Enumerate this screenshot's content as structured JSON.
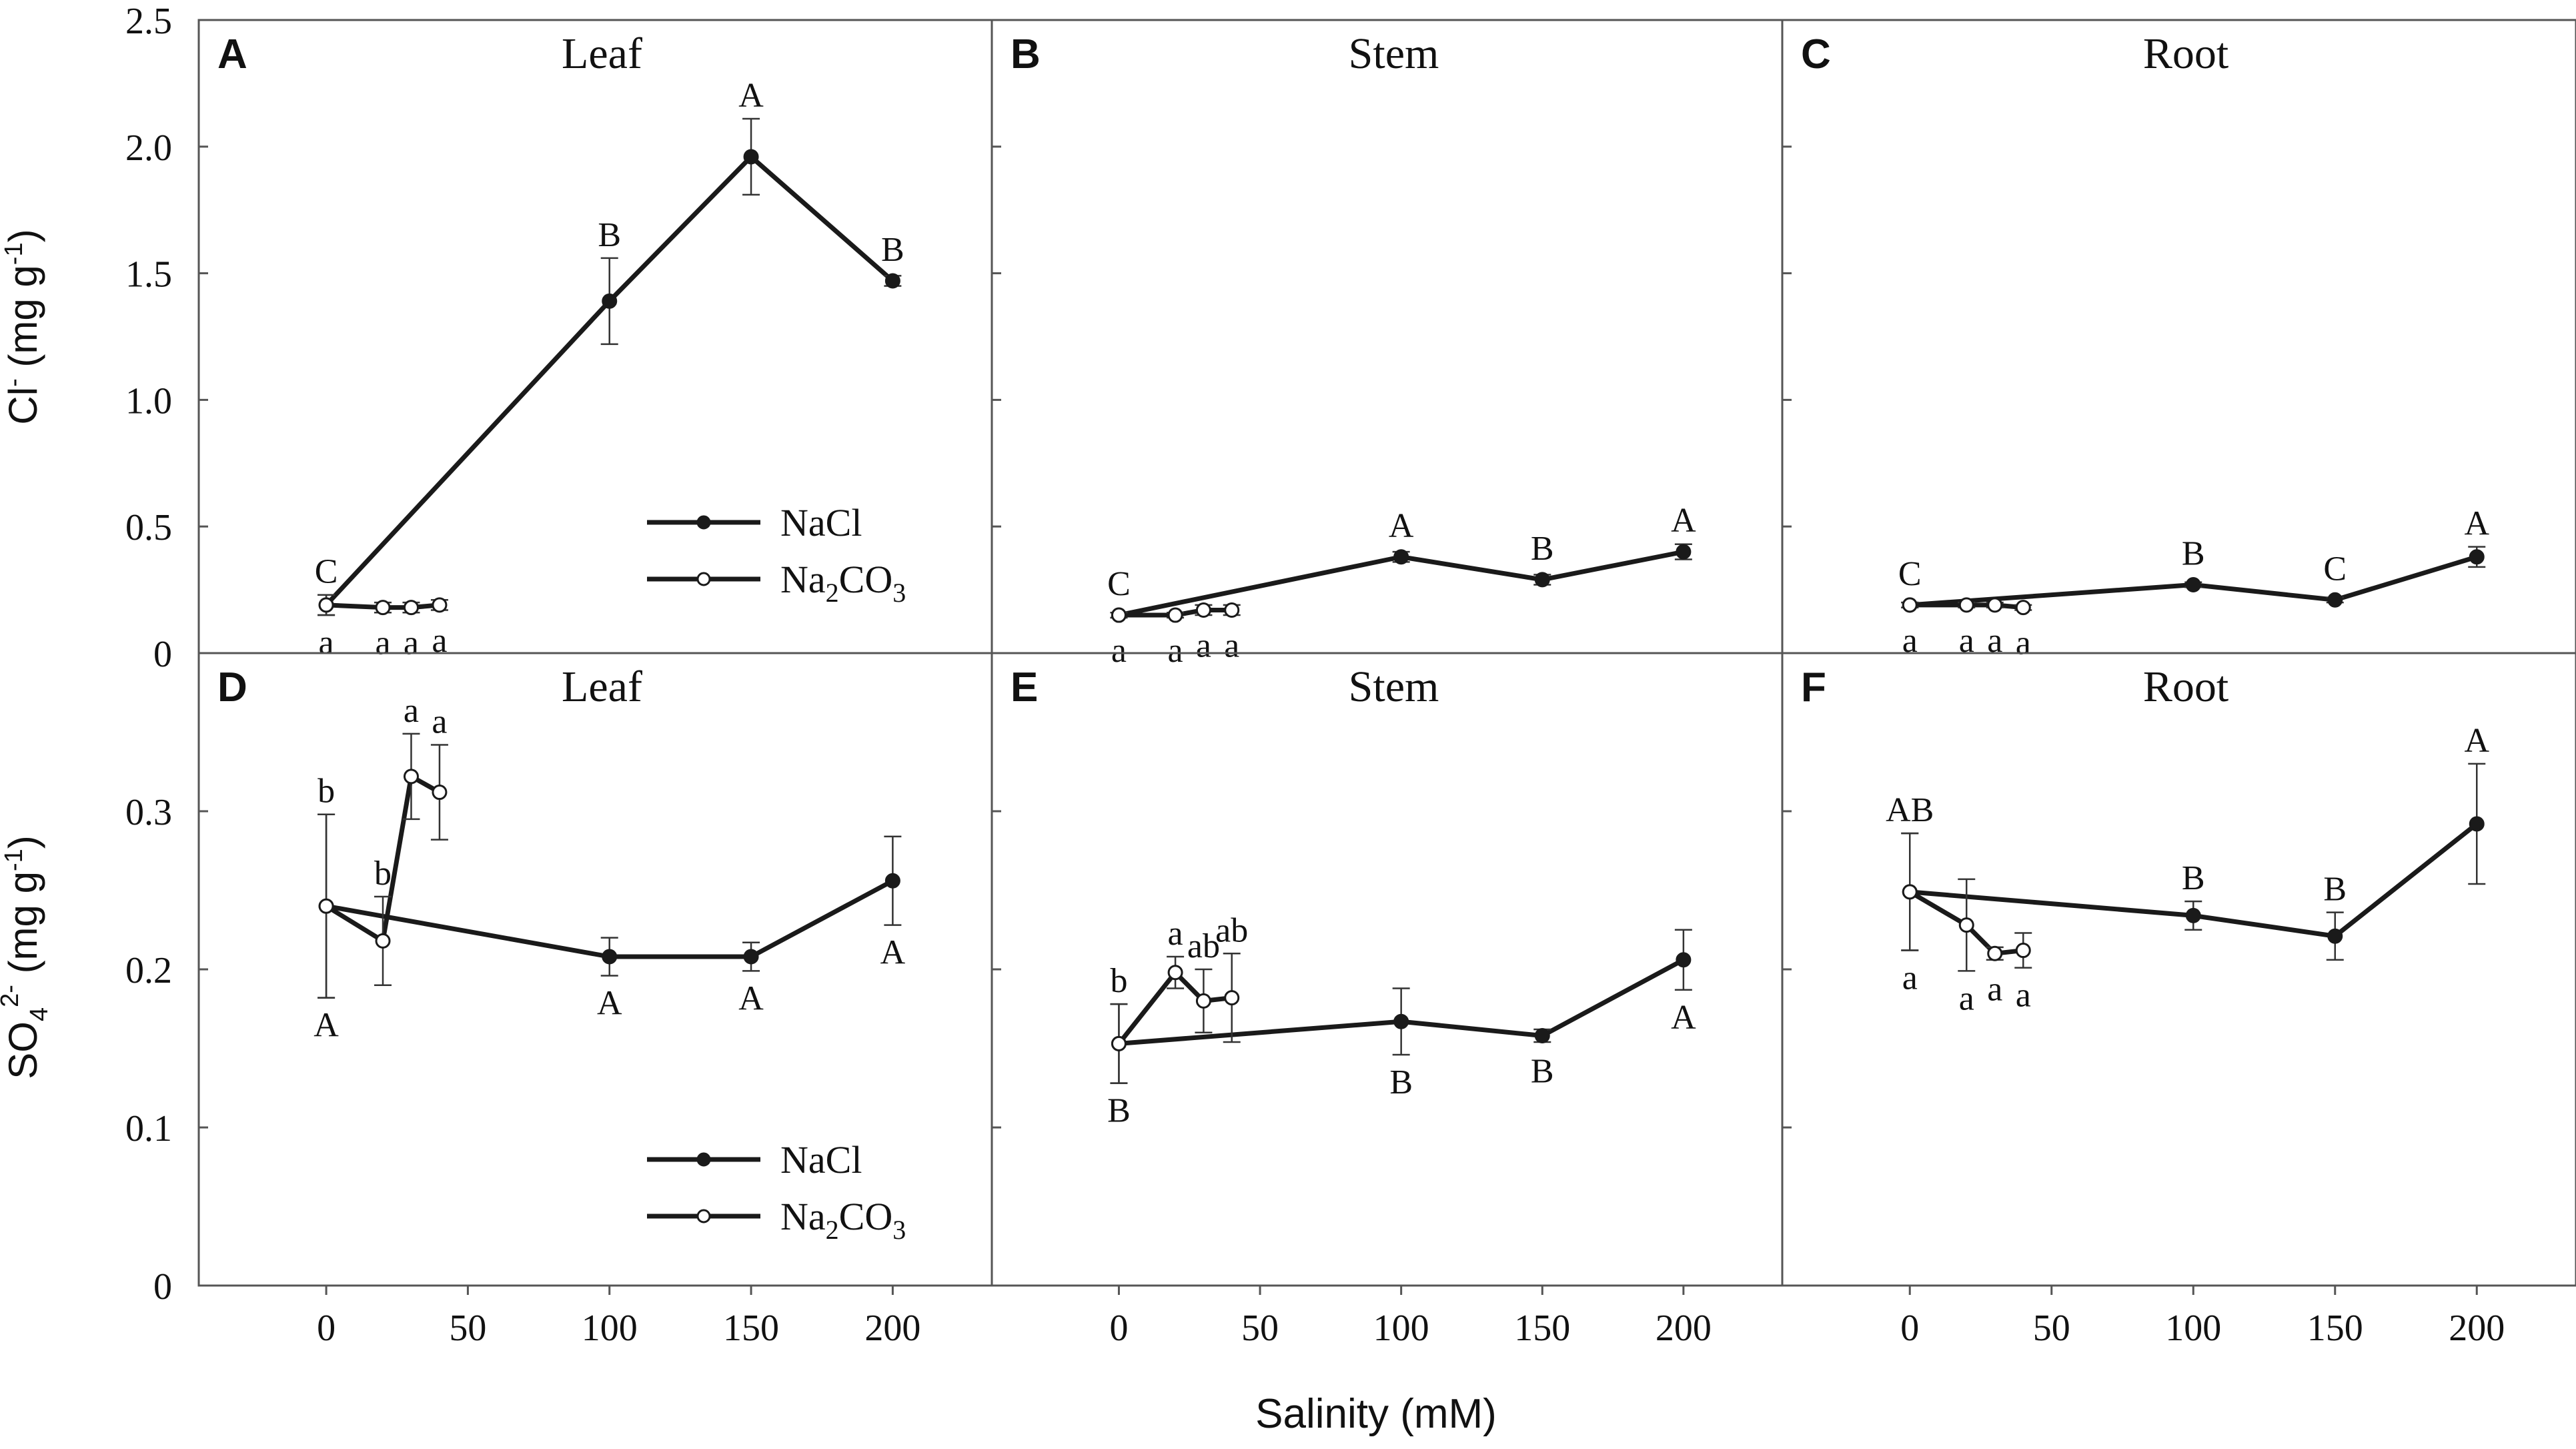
{
  "figure": {
    "x_axis_label": "Salinity (mM)",
    "y_axis_label_top": {
      "main": "Cl",
      "sup": "-",
      "unit": " (mg g",
      "unit_sup": "-1",
      "close": ")"
    },
    "y_axis_label_bottom": {
      "main": "SO",
      "sub": "4",
      "sup": "2-",
      "unit": " (mg g",
      "unit_sup": "-1",
      "close": ")"
    }
  },
  "legend": {
    "nacl": "NaCl",
    "na2co3": {
      "a": "Na",
      "sub1": "2",
      "b": "CO",
      "sub2": "3"
    }
  },
  "chart_data": [
    {
      "id": "A",
      "type": "line",
      "title": "Leaf",
      "panel_letter": "A",
      "xlabel": "Salinity (mM)",
      "ylabel": "Cl- (mg g-1)",
      "xlim": [
        -45,
        235
      ],
      "ylim": [
        0,
        2.5
      ],
      "xticks": [
        0,
        50,
        100,
        150,
        200
      ],
      "yticks": [
        0,
        0.5,
        1.0,
        1.5,
        2.0,
        2.5
      ],
      "ytick_labels": [
        "0",
        "0.5",
        "1.0",
        "1.5",
        "2.0",
        "2.5"
      ],
      "show_x_tick_labels": false,
      "show_y_tick_labels": true,
      "show_legend": true,
      "series": [
        {
          "name": "NaCl",
          "marker": "filled",
          "x": [
            0,
            100,
            150,
            200
          ],
          "y": [
            0.19,
            1.39,
            1.96,
            1.47
          ],
          "err": [
            0.04,
            0.17,
            0.15,
            0.02
          ],
          "letters": [
            "C",
            "B",
            "A",
            "B"
          ],
          "letter_pos": [
            "above",
            "above",
            "above",
            "above"
          ]
        },
        {
          "name": "Na2CO3",
          "marker": "open",
          "x": [
            0,
            20,
            30,
            40
          ],
          "y": [
            0.19,
            0.18,
            0.18,
            0.19
          ],
          "err": [
            0.04,
            0.02,
            0.02,
            0.02
          ],
          "letters": [
            "a",
            "a",
            "a",
            "a"
          ],
          "letter_pos": [
            "below",
            "below",
            "below",
            "below"
          ]
        }
      ]
    },
    {
      "id": "B",
      "type": "line",
      "title": "Stem",
      "panel_letter": "B",
      "xlabel": "Salinity (mM)",
      "ylabel": "",
      "xlim": [
        -45,
        235
      ],
      "ylim": [
        0,
        2.5
      ],
      "xticks": [
        0,
        50,
        100,
        150,
        200
      ],
      "yticks": [
        0,
        0.5,
        1.0,
        1.5,
        2.0,
        2.5
      ],
      "ytick_labels": [
        "0",
        "0.5",
        "1.0",
        "1.5",
        "2.0",
        "2.5"
      ],
      "show_x_tick_labels": false,
      "show_y_tick_labels": false,
      "show_legend": false,
      "series": [
        {
          "name": "NaCl",
          "marker": "filled",
          "x": [
            0,
            100,
            150,
            200
          ],
          "y": [
            0.15,
            0.38,
            0.29,
            0.4
          ],
          "err": [
            0.01,
            0.02,
            0.02,
            0.03
          ],
          "letters": [
            "C",
            "A",
            "B",
            "A"
          ],
          "letter_pos": [
            "above",
            "above",
            "above",
            "above"
          ]
        },
        {
          "name": "Na2CO3",
          "marker": "open",
          "x": [
            0,
            20,
            30,
            40
          ],
          "y": [
            0.15,
            0.15,
            0.17,
            0.17
          ],
          "err": [
            0.01,
            0.01,
            0.02,
            0.02
          ],
          "letters": [
            "a",
            "a",
            "a",
            "a"
          ],
          "letter_pos": [
            "below",
            "below",
            "below",
            "below"
          ]
        }
      ]
    },
    {
      "id": "C",
      "type": "line",
      "title": "Root",
      "panel_letter": "C",
      "xlabel": "Salinity (mM)",
      "ylabel": "",
      "xlim": [
        -45,
        235
      ],
      "ylim": [
        0,
        2.5
      ],
      "xticks": [
        0,
        50,
        100,
        150,
        200
      ],
      "yticks": [
        0,
        0.5,
        1.0,
        1.5,
        2.0,
        2.5
      ],
      "ytick_labels": [
        "0",
        "0.5",
        "1.0",
        "1.5",
        "2.0",
        "2.5"
      ],
      "show_x_tick_labels": false,
      "show_y_tick_labels": false,
      "show_legend": false,
      "series": [
        {
          "name": "NaCl",
          "marker": "filled",
          "x": [
            0,
            100,
            150,
            200
          ],
          "y": [
            0.19,
            0.27,
            0.21,
            0.38
          ],
          "err": [
            0.01,
            0.01,
            0.01,
            0.04
          ],
          "letters": [
            "C",
            "B",
            "C",
            "A"
          ],
          "letter_pos": [
            "above",
            "above",
            "above",
            "above"
          ]
        },
        {
          "name": "Na2CO3",
          "marker": "open",
          "x": [
            0,
            20,
            30,
            40
          ],
          "y": [
            0.19,
            0.19,
            0.19,
            0.18
          ],
          "err": [
            0.01,
            0.01,
            0.01,
            0.01
          ],
          "letters": [
            "a",
            "a",
            "a",
            "a"
          ],
          "letter_pos": [
            "below",
            "below",
            "below",
            "below"
          ]
        }
      ]
    },
    {
      "id": "D",
      "type": "line",
      "title": "Leaf",
      "panel_letter": "D",
      "xlabel": "Salinity (mM)",
      "ylabel": "SO4 2- (mg g-1)",
      "xlim": [
        -45,
        235
      ],
      "ylim": [
        0,
        0.4
      ],
      "xticks": [
        0,
        50,
        100,
        150,
        200
      ],
      "yticks": [
        0,
        0.1,
        0.2,
        0.3
      ],
      "ytick_labels": [
        "0",
        "0.1",
        "0.2",
        "0.3"
      ],
      "show_x_tick_labels": true,
      "show_y_tick_labels": true,
      "show_legend": true,
      "series": [
        {
          "name": "NaCl",
          "marker": "filled",
          "x": [
            0,
            100,
            150,
            200
          ],
          "y": [
            0.24,
            0.208,
            0.208,
            0.256
          ],
          "err": [
            0.058,
            0.012,
            0.009,
            0.028
          ],
          "letters": [
            "A",
            "A",
            "A",
            "A"
          ],
          "letter_pos": [
            "below",
            "below",
            "below",
            "below"
          ]
        },
        {
          "name": "Na2CO3",
          "marker": "open",
          "x": [
            0,
            20,
            30,
            40
          ],
          "y": [
            0.24,
            0.218,
            0.322,
            0.312
          ],
          "err": [
            0.058,
            0.028,
            0.027,
            0.03
          ],
          "letters": [
            "b",
            "b",
            "a",
            "a"
          ],
          "letter_pos": [
            "above",
            "above",
            "above",
            "above"
          ]
        }
      ]
    },
    {
      "id": "E",
      "type": "line",
      "title": "Stem",
      "panel_letter": "E",
      "xlabel": "Salinity (mM)",
      "ylabel": "",
      "xlim": [
        -45,
        235
      ],
      "ylim": [
        0,
        0.4
      ],
      "xticks": [
        0,
        50,
        100,
        150,
        200
      ],
      "yticks": [
        0,
        0.1,
        0.2,
        0.3
      ],
      "ytick_labels": [
        "0",
        "0.1",
        "0.2",
        "0.3"
      ],
      "show_x_tick_labels": true,
      "show_y_tick_labels": false,
      "show_legend": false,
      "series": [
        {
          "name": "NaCl",
          "marker": "filled",
          "x": [
            0,
            100,
            150,
            200
          ],
          "y": [
            0.153,
            0.167,
            0.158,
            0.206
          ],
          "err": [
            0.025,
            0.021,
            0.004,
            0.019
          ],
          "letters": [
            "B",
            "B",
            "B",
            "A"
          ],
          "letter_pos": [
            "below",
            "below",
            "below",
            "below"
          ]
        },
        {
          "name": "Na2CO3",
          "marker": "open",
          "x": [
            0,
            20,
            30,
            40
          ],
          "y": [
            0.153,
            0.198,
            0.18,
            0.182
          ],
          "err": [
            0.025,
            0.01,
            0.02,
            0.028
          ],
          "letters": [
            "b",
            "a",
            "ab",
            "ab"
          ],
          "letter_pos": [
            "above",
            "above",
            "above",
            "above"
          ]
        }
      ]
    },
    {
      "id": "F",
      "type": "line",
      "title": "Root",
      "panel_letter": "F",
      "xlabel": "Salinity (mM)",
      "ylabel": "",
      "xlim": [
        -45,
        235
      ],
      "ylim": [
        0,
        0.4
      ],
      "xticks": [
        0,
        50,
        100,
        150,
        200
      ],
      "yticks": [
        0,
        0.1,
        0.2,
        0.3
      ],
      "ytick_labels": [
        "0",
        "0.1",
        "0.2",
        "0.3"
      ],
      "show_x_tick_labels": true,
      "show_y_tick_labels": false,
      "show_legend": false,
      "series": [
        {
          "name": "NaCl",
          "marker": "filled",
          "x": [
            0,
            100,
            150,
            200
          ],
          "y": [
            0.249,
            0.234,
            0.221,
            0.292
          ],
          "err": [
            0.037,
            0.009,
            0.015,
            0.038
          ],
          "letters": [
            "AB",
            "B",
            "B",
            "A"
          ],
          "letter_pos": [
            "above",
            "above",
            "above",
            "above"
          ]
        },
        {
          "name": "Na2CO3",
          "marker": "open",
          "x": [
            0,
            20,
            30,
            40
          ],
          "y": [
            0.249,
            0.228,
            0.21,
            0.212
          ],
          "err": [
            0.037,
            0.029,
            0.004,
            0.011
          ],
          "letters": [
            "a",
            "a",
            "a",
            "a"
          ],
          "letter_pos": [
            "below",
            "below",
            "below",
            "below"
          ]
        }
      ]
    }
  ]
}
